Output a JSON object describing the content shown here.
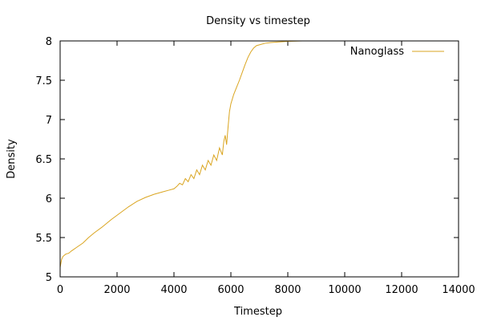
{
  "chart_data": {
    "type": "line",
    "title": "Density vs timestep",
    "xlabel": "Timestep",
    "ylabel": "Density",
    "xlim": [
      0,
      14000
    ],
    "ylim": [
      5,
      8
    ],
    "xticks": [
      0,
      2000,
      4000,
      6000,
      8000,
      10000,
      12000,
      14000
    ],
    "xtick_labels": [
      "0",
      "2000",
      "4000",
      "6000",
      "8000",
      "10000",
      "12000",
      "14000"
    ],
    "yticks": [
      5,
      5.5,
      6,
      6.5,
      7,
      7.5,
      8
    ],
    "ytick_labels": [
      "5",
      "5.5",
      "6",
      "6.5",
      "7",
      "7.5",
      "8"
    ],
    "grid": false,
    "legend_position": "top-right",
    "series": [
      {
        "name": "Nanoglass",
        "color": "#daa520",
        "x": [
          0,
          50,
          100,
          200,
          300,
          400,
          600,
          800,
          1000,
          1200,
          1500,
          1800,
          2100,
          2400,
          2700,
          3000,
          3300,
          3600,
          3800,
          4000,
          4100,
          4200,
          4300,
          4400,
          4500,
          4600,
          4700,
          4800,
          4900,
          5000,
          5100,
          5200,
          5300,
          5400,
          5500,
          5600,
          5700,
          5750,
          5800,
          5850,
          5900,
          5950,
          6000,
          6100,
          6200,
          6300,
          6400,
          6500,
          6600,
          6700,
          6800,
          6900,
          7000,
          7200,
          7400,
          7600,
          7800,
          8000,
          8500,
          9000,
          10000,
          11000,
          12000,
          13000
        ],
        "y": [
          5.12,
          5.22,
          5.26,
          5.29,
          5.3,
          5.33,
          5.38,
          5.43,
          5.5,
          5.56,
          5.64,
          5.73,
          5.81,
          5.89,
          5.96,
          6.01,
          6.05,
          6.08,
          6.1,
          6.12,
          6.15,
          6.19,
          6.17,
          6.25,
          6.21,
          6.3,
          6.25,
          6.36,
          6.3,
          6.42,
          6.36,
          6.48,
          6.42,
          6.55,
          6.48,
          6.64,
          6.55,
          6.72,
          6.8,
          6.68,
          6.9,
          7.1,
          7.2,
          7.32,
          7.41,
          7.5,
          7.6,
          7.7,
          7.79,
          7.86,
          7.91,
          7.94,
          7.95,
          7.97,
          7.98,
          7.985,
          7.99,
          7.995,
          8.0,
          8.0,
          8.0,
          8.0,
          8.0,
          8.0
        ]
      }
    ]
  }
}
